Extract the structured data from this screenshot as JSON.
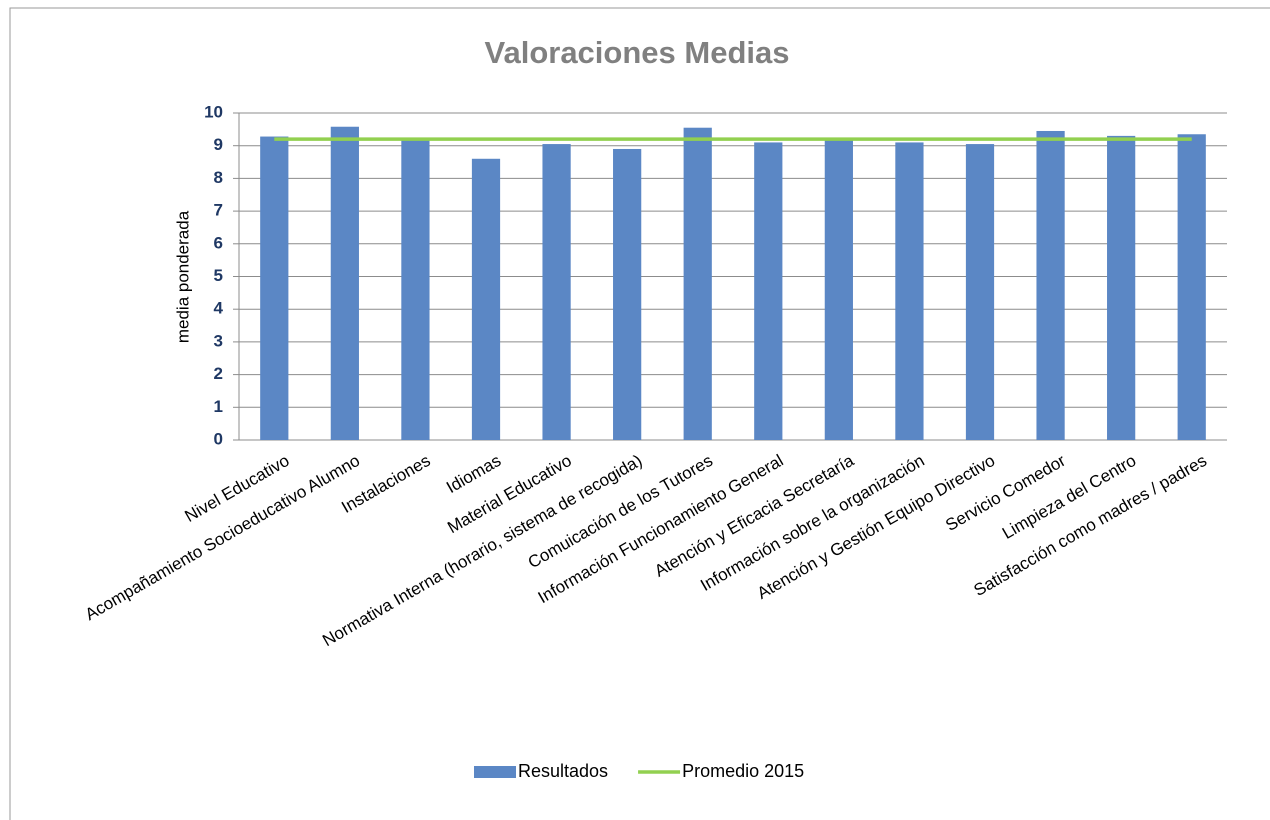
{
  "chart_data": {
    "type": "bar",
    "title": "Valoraciones Medias",
    "y_label": "media ponderada",
    "categories": [
      "Nivel Educativo",
      "Acompañamiento Socioeducativo Alumno",
      "Instalaciones",
      "Idiomas",
      "Material Educativo",
      "Normativa Interna (horario, sistema de recogida)",
      "Comuicación de los Tutores",
      "Información Funcionamiento General",
      "Atención y Eficacia Secretaría",
      "Información sobre la organización",
      "Atención y Gestión Equipo Directivo",
      "Servicio Comedor",
      "Limpieza del Centro",
      "Satisfacción como madres / padres"
    ],
    "series": [
      {
        "name": "Resultados",
        "type": "bar",
        "color": "#5b87c5",
        "values": [
          9.28,
          9.58,
          9.2,
          8.6,
          9.05,
          8.9,
          9.55,
          9.1,
          9.2,
          9.1,
          9.05,
          9.45,
          9.3,
          9.35
        ]
      },
      {
        "name": "Promedio 2015",
        "type": "line",
        "color": "#92d050",
        "values": [
          9.2,
          9.2,
          9.2,
          9.2,
          9.2,
          9.2,
          9.2,
          9.2,
          9.2,
          9.2,
          9.2,
          9.2,
          9.2,
          9.2
        ]
      }
    ],
    "ylim": [
      0,
      10
    ],
    "yticks": [
      0,
      1,
      2,
      3,
      4,
      5,
      6,
      7,
      8,
      9,
      10
    ],
    "grid": true,
    "legend": "bottom"
  }
}
